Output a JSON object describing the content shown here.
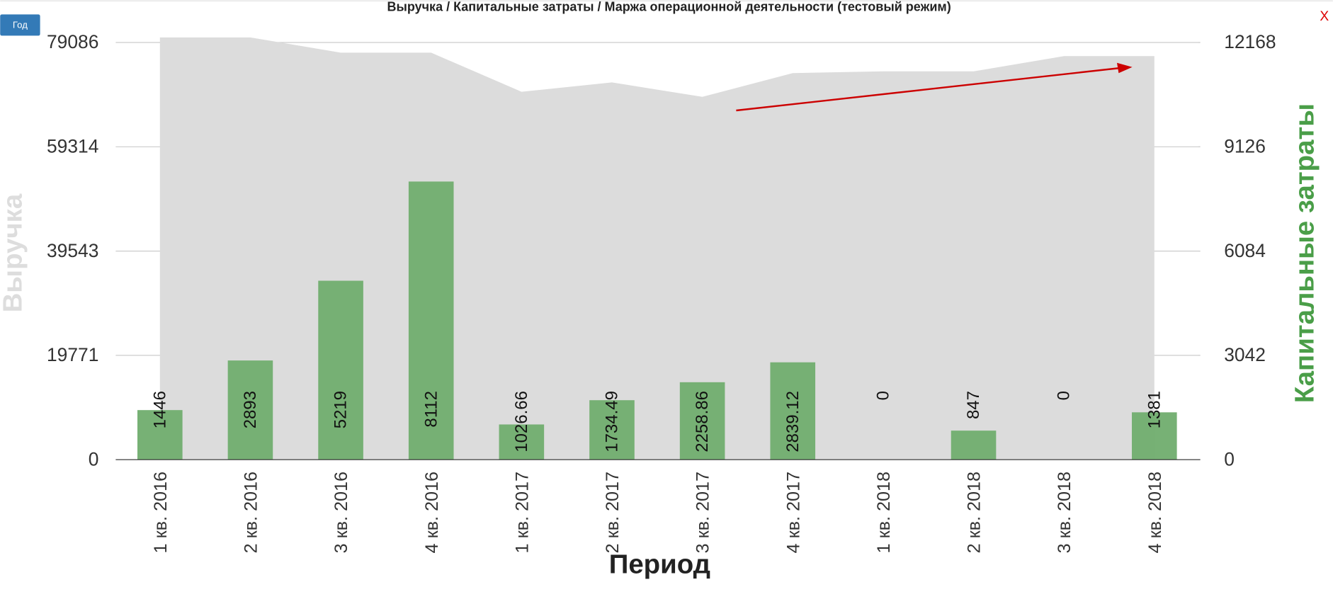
{
  "chart_data": {
    "type": "combo",
    "title": "Выручка / Капитальные затраты / Маржа операционной деятельности (тестовый режим)",
    "button": "Год",
    "close": "X",
    "x_label": "Период",
    "y_label": "Выручка",
    "y2_label": "Капитальные затраты",
    "categories": [
      "1 кв. 2016",
      "2 кв. 2016",
      "3 кв. 2016",
      "4 кв. 2016",
      "1 кв. 2017",
      "2 кв. 2017",
      "3 кв. 2017",
      "4 кв. 2017",
      "1 кв. 2018",
      "2 кв. 2018",
      "3 кв. 2018",
      "4 кв. 2018"
    ],
    "ylim": [
      0,
      79086
    ],
    "yticks": [
      0,
      19771,
      39543,
      59314,
      79086
    ],
    "y2lim": [
      0,
      12168
    ],
    "y2ticks": [
      0,
      3042,
      6084,
      9126,
      12168
    ],
    "grid": true,
    "series": [
      {
        "name": "Выручка",
        "type": "area",
        "color": "#dcdcdc",
        "values": [
          80050,
          80050,
          77154,
          77154,
          69745,
          71516,
          68777,
          73288,
          73610,
          73610,
          76509,
          76509
        ]
      },
      {
        "name": "Капитальные затраты",
        "type": "bar",
        "axis": "y2",
        "color": "#70ad6e",
        "values": [
          1446,
          2893,
          5219,
          8112,
          1026.66,
          1734.49,
          2258.86,
          2839.12,
          0,
          847,
          0,
          1381
        ]
      }
    ]
  }
}
